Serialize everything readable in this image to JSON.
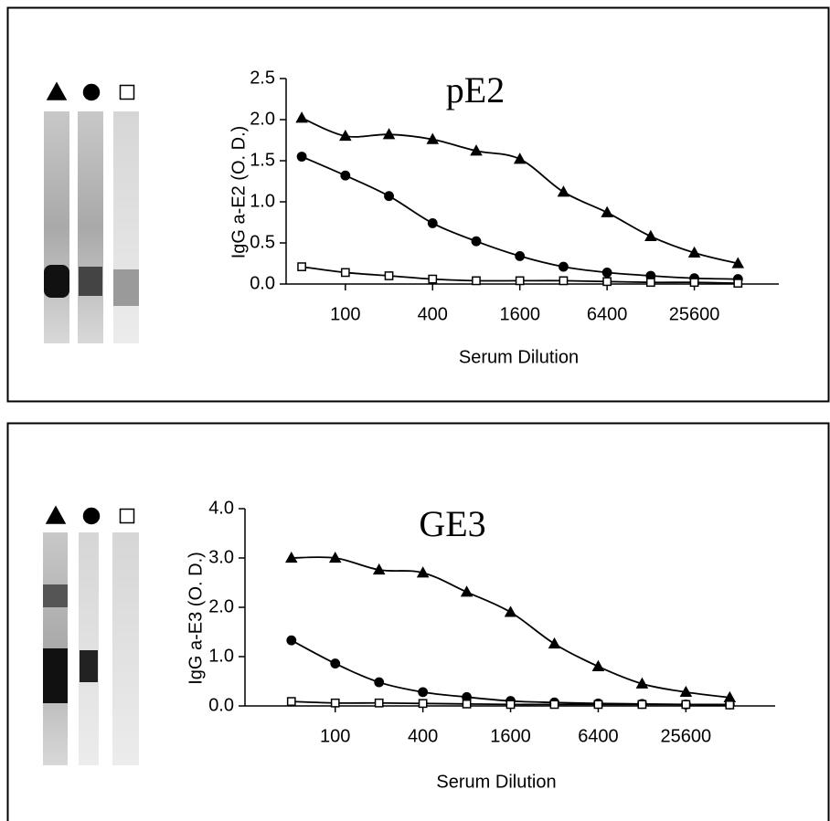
{
  "chart_data": [
    {
      "type": "line",
      "title": "pE2",
      "x_label": "Serum Dilution",
      "y_label": "IgG a-E2 (O. D.)",
      "x": [
        50,
        100,
        200,
        400,
        800,
        1600,
        3200,
        6400,
        12800,
        25600,
        51200
      ],
      "xscale": "log",
      "xlim": [
        39,
        98000
      ],
      "xticks": [
        100,
        400,
        1600,
        6400,
        25600
      ],
      "ylim": [
        0,
        2.5
      ],
      "yticks": [
        {
          "value": 0,
          "label": "0.0"
        },
        {
          "value": 0.5,
          "label": "0.5"
        },
        {
          "value": 1,
          "label": "1.0"
        },
        {
          "value": 1.5,
          "label": "1.5"
        },
        {
          "value": 2,
          "label": "2.0"
        },
        {
          "value": 2.5,
          "label": "2.5"
        }
      ],
      "smooth": true,
      "series": [
        {
          "marker": "triangle",
          "filled": true,
          "color": "#000000",
          "values": [
            2.02,
            1.8,
            1.82,
            1.76,
            1.62,
            1.52,
            1.12,
            0.87,
            0.58,
            0.38,
            0.25
          ]
        },
        {
          "marker": "circle",
          "filled": true,
          "color": "#000000",
          "values": [
            1.55,
            1.32,
            1.07,
            0.74,
            0.52,
            0.34,
            0.21,
            0.14,
            0.1,
            0.07,
            0.06
          ]
        },
        {
          "marker": "square",
          "filled": false,
          "color": "#000000",
          "values": [
            0.21,
            0.14,
            0.1,
            0.06,
            0.04,
            0.04,
            0.04,
            0.03,
            0.02,
            0.02,
            0.01
          ]
        }
      ]
    },
    {
      "type": "line",
      "title": "GE3",
      "x_label": "Serum Dilution",
      "y_label": "IgG a-E3 (O. D.)",
      "x": [
        50,
        100,
        200,
        400,
        800,
        1600,
        3200,
        6400,
        12800,
        25600,
        51200
      ],
      "xscale": "log",
      "xlim": [
        24,
        105000
      ],
      "xticks": [
        100,
        400,
        1600,
        6400,
        25600
      ],
      "ylim": [
        0,
        4
      ],
      "yticks": [
        {
          "value": 0,
          "label": "0.0"
        },
        {
          "value": 1,
          "label": "1.0"
        },
        {
          "value": 2,
          "label": "2.0"
        },
        {
          "value": 3,
          "label": "3.0"
        },
        {
          "value": 4,
          "label": "4.0"
        }
      ],
      "smooth": true,
      "series": [
        {
          "marker": "triangle",
          "filled": true,
          "color": "#000000",
          "values": [
            3.0,
            3.0,
            2.76,
            2.7,
            2.31,
            1.9,
            1.26,
            0.8,
            0.45,
            0.28,
            0.17
          ]
        },
        {
          "marker": "circle",
          "filled": true,
          "color": "#000000",
          "values": [
            1.33,
            0.86,
            0.48,
            0.28,
            0.18,
            0.1,
            0.07,
            0.05,
            0.04,
            0.03,
            0.03
          ]
        },
        {
          "marker": "square",
          "filled": false,
          "color": "#000000",
          "values": [
            0.09,
            0.06,
            0.06,
            0.05,
            0.04,
            0.03,
            0.03,
            0.03,
            0.03,
            0.03,
            0.02
          ]
        }
      ]
    }
  ]
}
